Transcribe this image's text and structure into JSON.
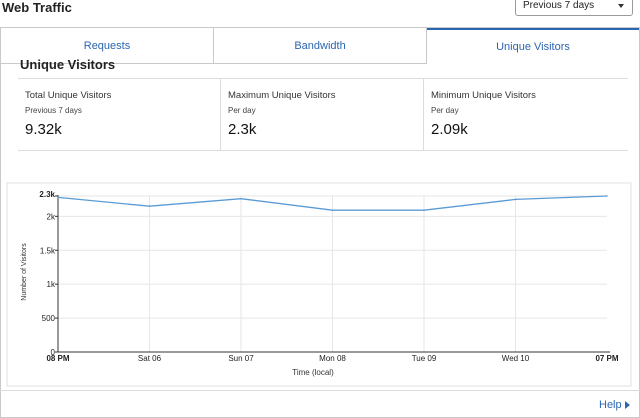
{
  "header": {
    "title": "Web Traffic",
    "range_value": "Previous 7 days"
  },
  "tabs": [
    {
      "label": "Requests"
    },
    {
      "label": "Bandwidth"
    },
    {
      "label": "Unique Visitors"
    }
  ],
  "section": {
    "title": "Unique Visitors"
  },
  "stats": [
    {
      "label": "Total Unique Visitors",
      "sub": "Previous 7 days",
      "value": "9.32k"
    },
    {
      "label": "Maximum Unique Visitors",
      "sub": "Per day",
      "value": "2.3k"
    },
    {
      "label": "Minimum Unique Visitors",
      "sub": "Per day",
      "value": "2.09k"
    }
  ],
  "help": {
    "label": "Help"
  },
  "chart_data": {
    "type": "line",
    "xlabel": "Time (local)",
    "ylabel": "Number of Visitors",
    "ylim": [
      0,
      2300
    ],
    "y_ticks": [
      {
        "value": 2300,
        "label": "2.3k"
      },
      {
        "value": 2000,
        "label": "2k"
      },
      {
        "value": 1500,
        "label": "1.5k"
      },
      {
        "value": 1000,
        "label": "1k"
      },
      {
        "value": 500,
        "label": "500"
      },
      {
        "value": 0,
        "label": "0"
      }
    ],
    "x_ticks": [
      {
        "pos": 0,
        "label": "08 PM"
      },
      {
        "pos": 1,
        "label": "Sat 06"
      },
      {
        "pos": 2,
        "label": "Sun 07"
      },
      {
        "pos": 3,
        "label": "Mon 08"
      },
      {
        "pos": 4,
        "label": "Tue 09"
      },
      {
        "pos": 5,
        "label": "Wed 10"
      },
      {
        "pos": 6,
        "label": "07 PM"
      }
    ],
    "grid": true,
    "series": [
      {
        "color": "#5b9bd5",
        "points": [
          {
            "x": 0,
            "y": 2280
          },
          {
            "x": 1,
            "y": 2150
          },
          {
            "x": 2,
            "y": 2260
          },
          {
            "x": 3,
            "y": 2090
          },
          {
            "x": 4,
            "y": 2090
          },
          {
            "x": 5,
            "y": 2250
          },
          {
            "x": 6,
            "y": 2300
          }
        ]
      }
    ]
  }
}
